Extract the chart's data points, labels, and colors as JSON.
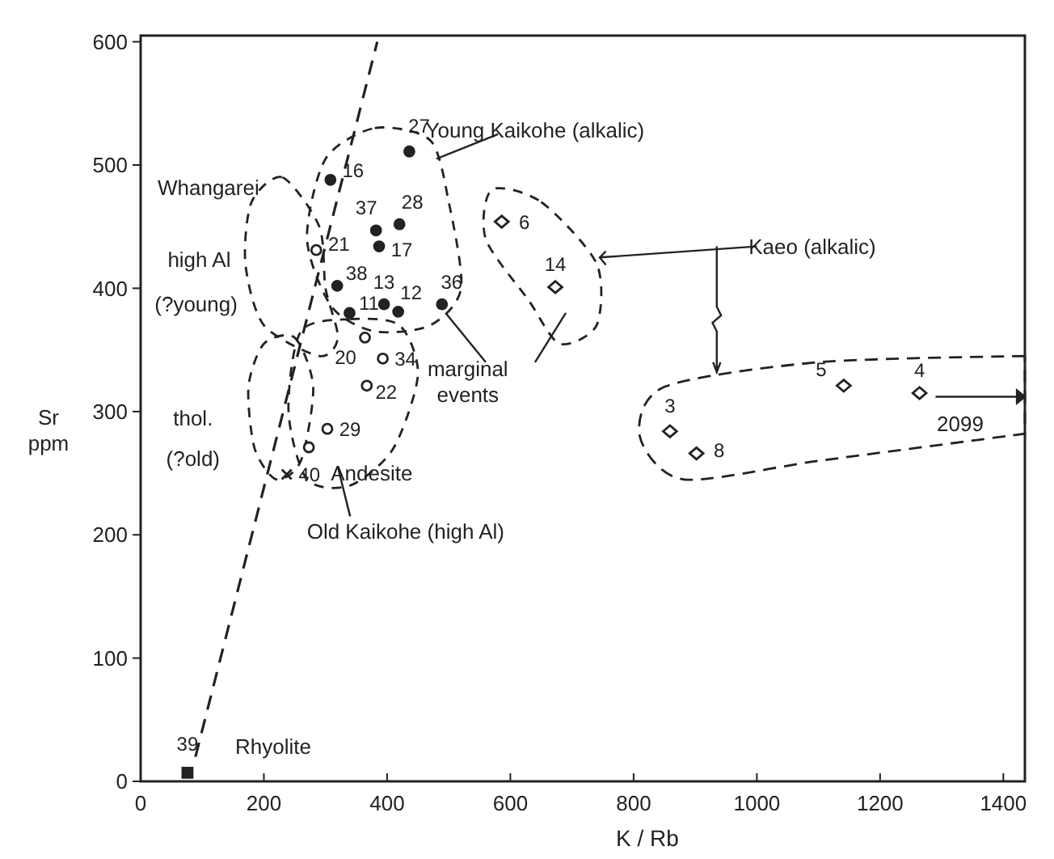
{
  "chart_data": {
    "type": "scatter",
    "xlabel": "K / Rb",
    "ylabel": "Sr ppm",
    "xlim": [
      0,
      1435
    ],
    "ylim": [
      0,
      605
    ],
    "xticks": [
      0,
      200,
      400,
      600,
      800,
      1000,
      1200,
      1400
    ],
    "yticks": [
      0,
      100,
      200,
      300,
      400,
      500,
      600
    ],
    "grid": false,
    "series": [
      {
        "marker": "circle",
        "color": "#222222",
        "x": [
          436,
          308,
          382,
          420,
          387,
          319,
          339,
          395,
          418,
          489
        ],
        "values": [
          511,
          488,
          447,
          452,
          434,
          402,
          380,
          387,
          381,
          387
        ]
      },
      {
        "marker": "circle",
        "color": "#ffffff",
        "x": [
          285,
          364,
          393,
          367,
          303,
          273
        ],
        "values": [
          431,
          360,
          343,
          321,
          286,
          271
        ]
      },
      {
        "marker": "cross",
        "color": "#222222",
        "x": [
          237
        ],
        "values": [
          249
        ]
      },
      {
        "marker": "diamond",
        "color": "#ffffff",
        "x": [
          586,
          673,
          859,
          902,
          1141,
          1264
        ],
        "values": [
          454,
          401,
          284,
          266,
          321,
          315
        ]
      },
      {
        "marker": "square",
        "color": "#222222",
        "x": [
          76
        ],
        "values": [
          7
        ]
      },
      {
        "type": "line",
        "marker": "none",
        "line_style": "dashed",
        "color": "#222222",
        "x": [
          89,
          384
        ],
        "values": [
          20,
          600
        ]
      }
    ],
    "annotations": [
      {
        "text": "27",
        "x": 436,
        "y": 511
      },
      {
        "text": "16",
        "x": 308,
        "y": 488
      },
      {
        "text": "37",
        "x": 382,
        "y": 447
      },
      {
        "text": "28",
        "x": 420,
        "y": 452
      },
      {
        "text": "17",
        "x": 387,
        "y": 434
      },
      {
        "text": "21",
        "x": 285,
        "y": 431
      },
      {
        "text": "38",
        "x": 319,
        "y": 402
      },
      {
        "text": "11",
        "x": 339,
        "y": 380
      },
      {
        "text": "13",
        "x": 395,
        "y": 387
      },
      {
        "text": "12",
        "x": 418,
        "y": 381
      },
      {
        "text": "36",
        "x": 489,
        "y": 387
      },
      {
        "text": "20",
        "x": 364,
        "y": 360
      },
      {
        "text": "34",
        "x": 393,
        "y": 343
      },
      {
        "text": "22",
        "x": 367,
        "y": 321
      },
      {
        "text": "29",
        "x": 303,
        "y": 286
      },
      {
        "text": "40",
        "x": 237,
        "y": 249
      },
      {
        "text": "6",
        "x": 586,
        "y": 454
      },
      {
        "text": "14",
        "x": 673,
        "y": 401
      },
      {
        "text": "3",
        "x": 859,
        "y": 284
      },
      {
        "text": "8",
        "x": 902,
        "y": 266
      },
      {
        "text": "5",
        "x": 1141,
        "y": 321
      },
      {
        "text": "4",
        "x": 1264,
        "y": 315
      },
      {
        "text": "39",
        "x": 76,
        "y": 7
      },
      "Whangarei",
      "high Al",
      "(?young)",
      "thol.",
      "(?old)",
      "Andesite",
      "Old Kaikohe (high Al)",
      "Young Kaikohe (alkalic)",
      {
        "text": "marginal events",
        "x": 489,
        "y": 387
      },
      "Kaeo (alkalic)",
      "Rhyolite",
      "2099"
    ]
  }
}
